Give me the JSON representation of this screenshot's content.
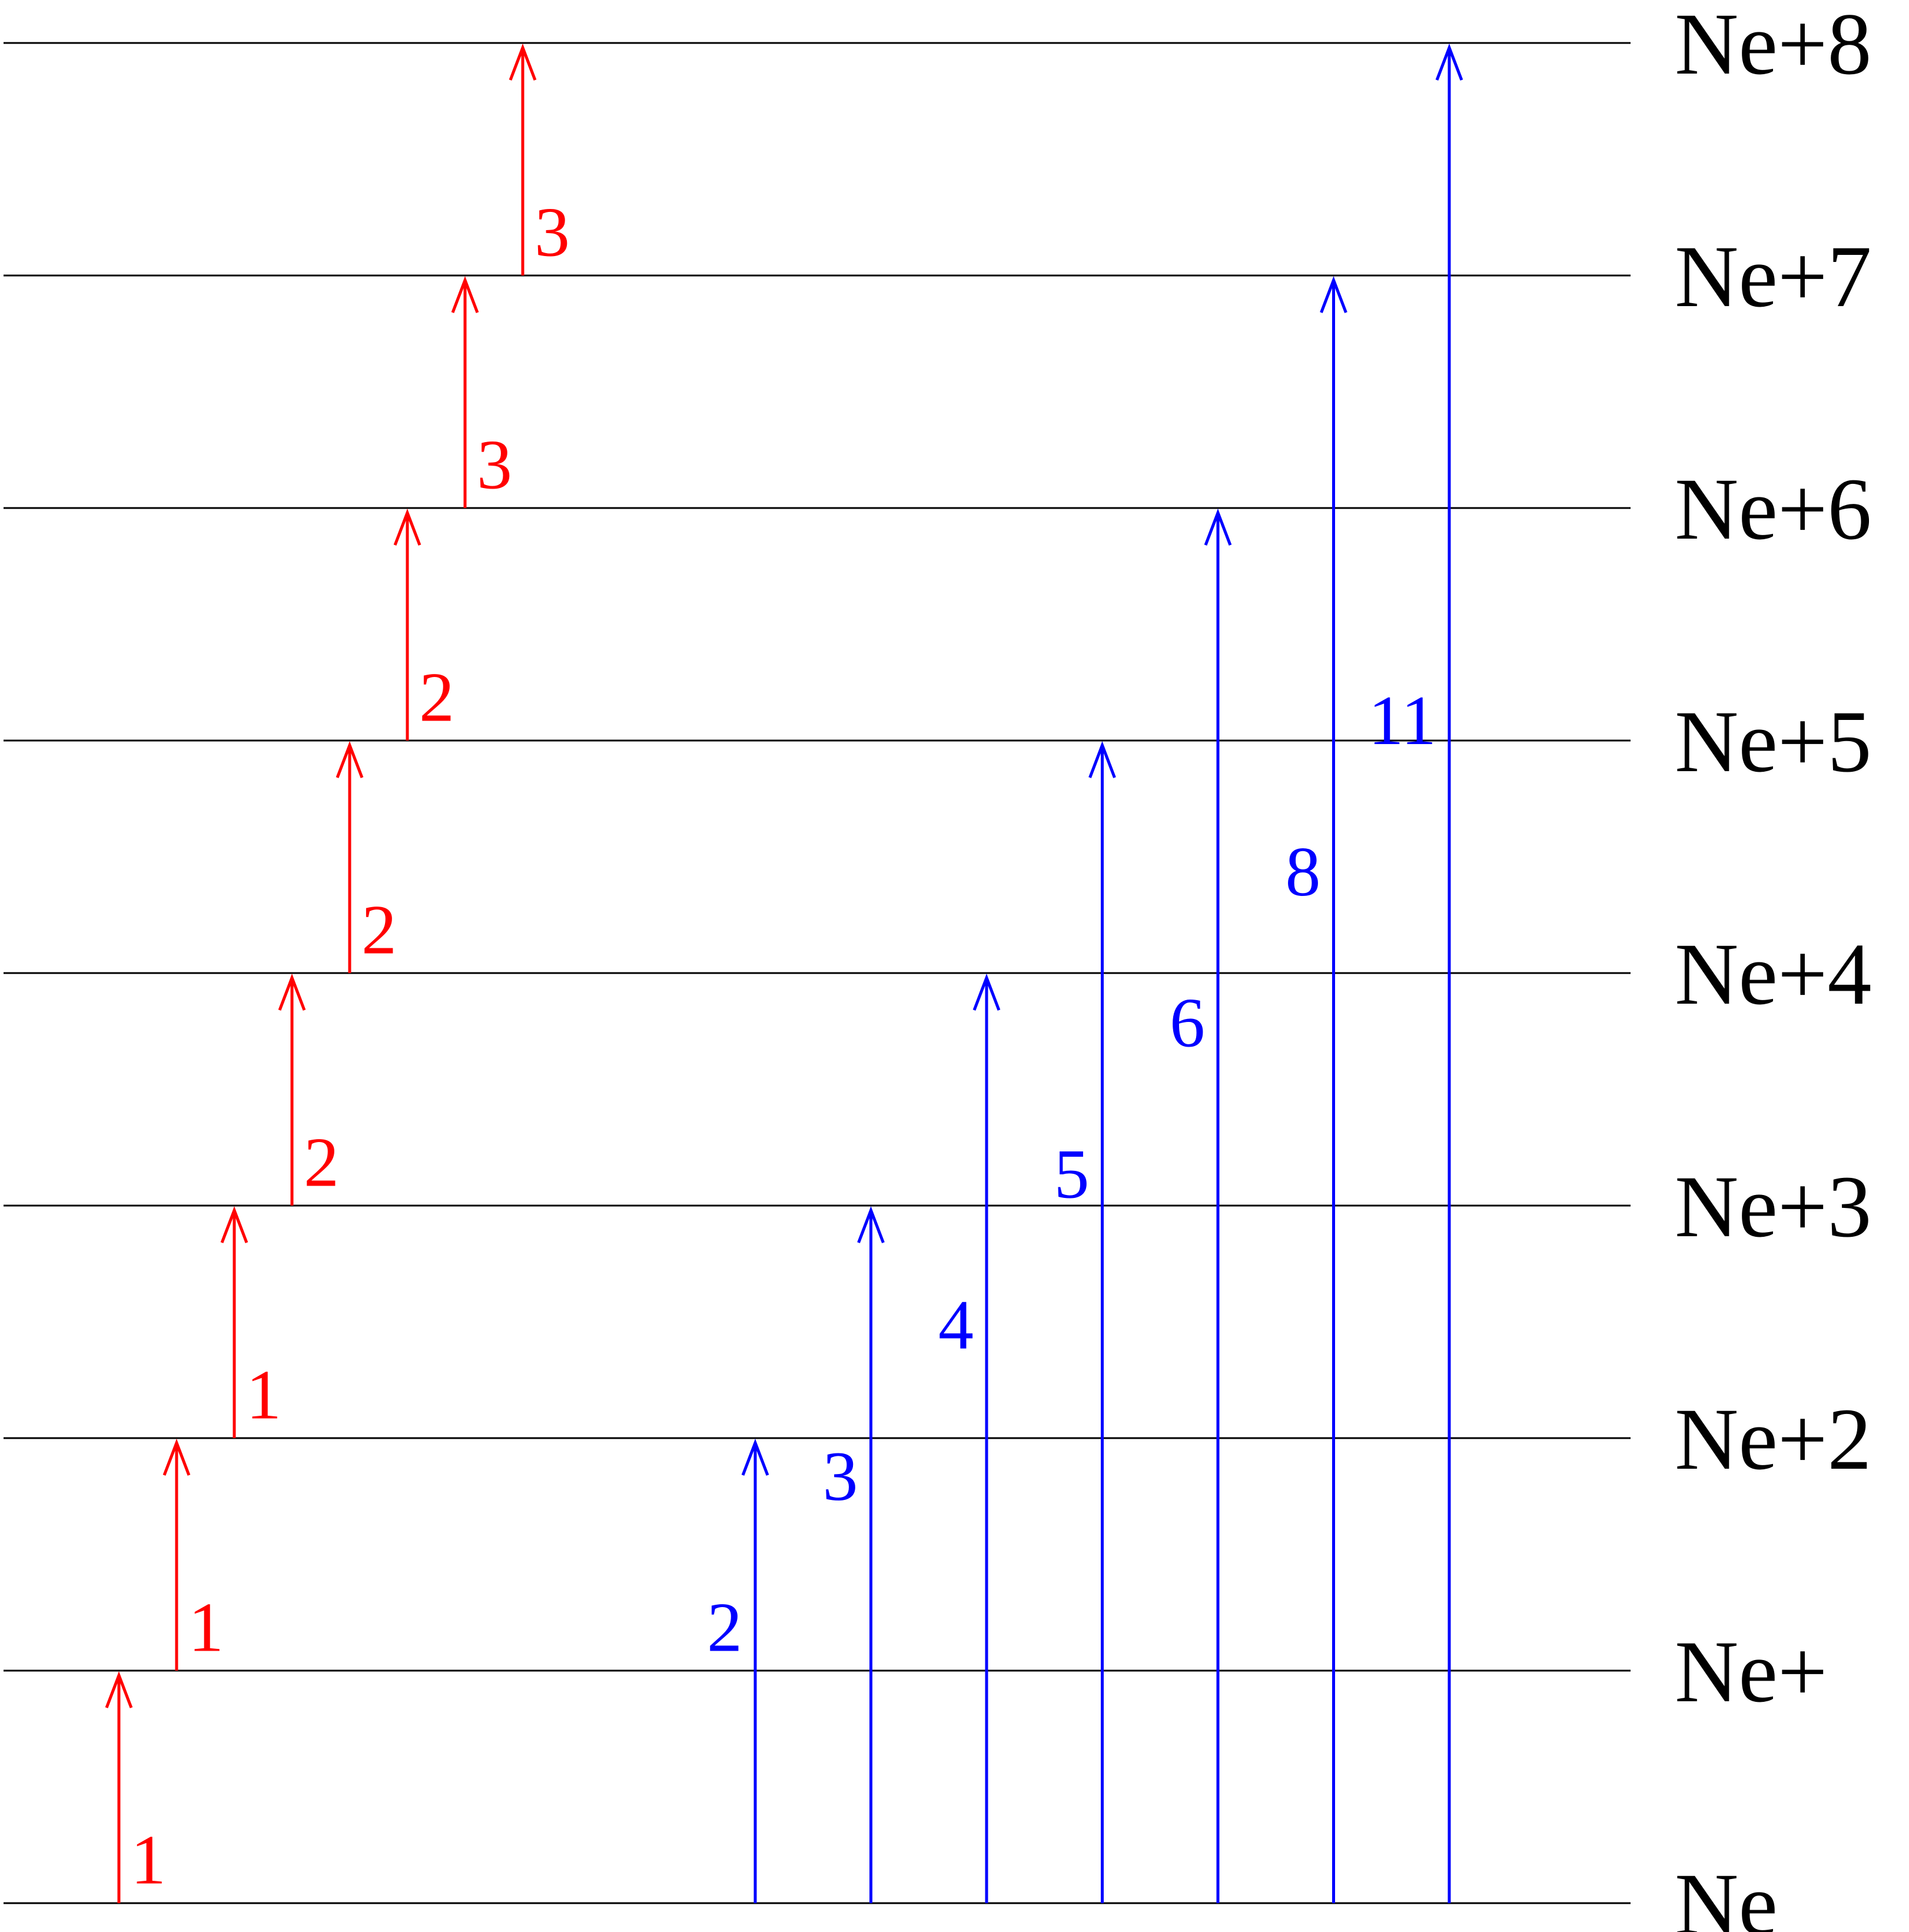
{
  "levels": [
    {
      "label": "Ne"
    },
    {
      "label": "Ne+"
    },
    {
      "label": "Ne+2"
    },
    {
      "label": "Ne+3"
    },
    {
      "label": "Ne+4"
    },
    {
      "label": "Ne+5"
    },
    {
      "label": "Ne+6"
    },
    {
      "label": "Ne+7"
    },
    {
      "label": "Ne+8"
    }
  ],
  "sequential_steps": {
    "color": "#ff0000",
    "steps": [
      {
        "from": 0,
        "to": 1,
        "label": "1"
      },
      {
        "from": 1,
        "to": 2,
        "label": "1"
      },
      {
        "from": 2,
        "to": 3,
        "label": "1"
      },
      {
        "from": 3,
        "to": 4,
        "label": "2"
      },
      {
        "from": 4,
        "to": 5,
        "label": "2"
      },
      {
        "from": 5,
        "to": 6,
        "label": "2"
      },
      {
        "from": 6,
        "to": 7,
        "label": "3"
      },
      {
        "from": 7,
        "to": 8,
        "label": "3"
      }
    ]
  },
  "direct_steps": {
    "color": "#0000ff",
    "steps": [
      {
        "from": 0,
        "to": 2,
        "label": "2"
      },
      {
        "from": 0,
        "to": 3,
        "label": "3"
      },
      {
        "from": 0,
        "to": 4,
        "label": "4"
      },
      {
        "from": 0,
        "to": 5,
        "label": "5"
      },
      {
        "from": 0,
        "to": 6,
        "label": "6"
      },
      {
        "from": 0,
        "to": 7,
        "label": "8"
      },
      {
        "from": 0,
        "to": 8,
        "label": "11"
      }
    ]
  },
  "line_color": "#000000"
}
